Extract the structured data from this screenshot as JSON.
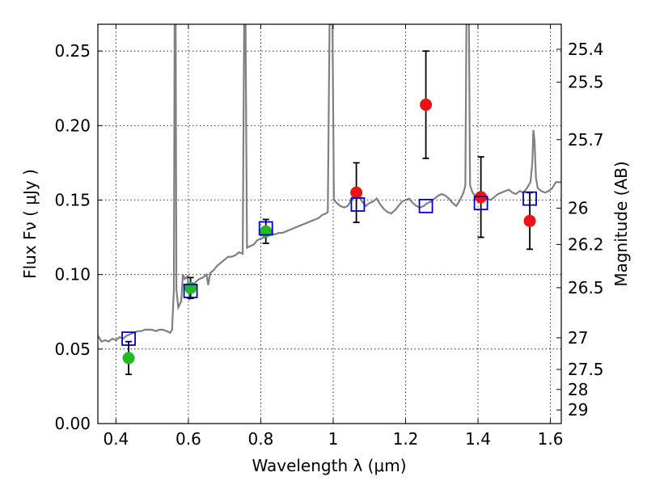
{
  "chart_data": {
    "type": "scatter",
    "xlabel": "Wavelength  λ (μm)",
    "ylabel": "Flux  Fν  ( μJy )",
    "y2label": "Magnitude (AB)",
    "xlim": [
      0.35,
      1.63
    ],
    "ylim": [
      0.0,
      0.268
    ],
    "grid": true,
    "x_ticks": [
      {
        "v": 0.4,
        "label": "0.4"
      },
      {
        "v": 0.6,
        "label": "0.6"
      },
      {
        "v": 0.8,
        "label": "0.8"
      },
      {
        "v": 1.0,
        "label": "1"
      },
      {
        "v": 1.2,
        "label": "1.2"
      },
      {
        "v": 1.4,
        "label": "1.4"
      },
      {
        "v": 1.6,
        "label": "1.6"
      }
    ],
    "y_ticks": [
      {
        "v": 0.0,
        "label": "0.00"
      },
      {
        "v": 0.05,
        "label": "0.05"
      },
      {
        "v": 0.1,
        "label": "0.10"
      },
      {
        "v": 0.15,
        "label": "0.15"
      },
      {
        "v": 0.2,
        "label": "0.20"
      },
      {
        "v": 0.25,
        "label": "0.25"
      }
    ],
    "y2_ticks": [
      {
        "mag": 25.4,
        "label": "25.4"
      },
      {
        "mag": 25.5,
        "label": "25.5"
      },
      {
        "mag": 25.7,
        "label": "25.7"
      },
      {
        "mag": 26.0,
        "label": "26"
      },
      {
        "mag": 26.2,
        "label": "26.2"
      },
      {
        "mag": 26.5,
        "label": "26.5"
      },
      {
        "mag": 27.0,
        "label": "27"
      },
      {
        "mag": 27.5,
        "label": "27.5"
      },
      {
        "mag": 28.0,
        "label": "28"
      },
      {
        "mag": 29.0,
        "label": "29"
      }
    ],
    "colors": {
      "model": "#808080",
      "green": "#22bb22",
      "red": "#ee1111",
      "box": "#0000cc"
    },
    "green_points": [
      {
        "x": 0.435,
        "y": 0.044,
        "err": 0.011
      },
      {
        "x": 0.606,
        "y": 0.091,
        "err": 0.007
      },
      {
        "x": 0.814,
        "y": 0.129,
        "err": 0.008
      }
    ],
    "red_points": [
      {
        "x": 1.064,
        "y": 0.155,
        "err": 0.02
      },
      {
        "x": 1.256,
        "y": 0.214,
        "err": 0.036
      },
      {
        "x": 1.408,
        "y": 0.152,
        "err": 0.027
      },
      {
        "x": 1.543,
        "y": 0.136,
        "err": 0.019
      }
    ],
    "model_boxes": [
      {
        "x": 0.435,
        "y": 0.057
      },
      {
        "x": 0.606,
        "y": 0.089
      },
      {
        "x": 0.814,
        "y": 0.131
      },
      {
        "x": 1.068,
        "y": 0.147
      },
      {
        "x": 1.256,
        "y": 0.146
      },
      {
        "x": 1.408,
        "y": 0.148
      },
      {
        "x": 1.543,
        "y": 0.151
      }
    ],
    "model_spectrum": [
      [
        0.35,
        0.059
      ],
      [
        0.36,
        0.055
      ],
      [
        0.37,
        0.056
      ],
      [
        0.38,
        0.055
      ],
      [
        0.39,
        0.057
      ],
      [
        0.4,
        0.056
      ],
      [
        0.41,
        0.058
      ],
      [
        0.42,
        0.057
      ],
      [
        0.43,
        0.059
      ],
      [
        0.44,
        0.06
      ],
      [
        0.45,
        0.061
      ],
      [
        0.46,
        0.062
      ],
      [
        0.47,
        0.062
      ],
      [
        0.48,
        0.063
      ],
      [
        0.49,
        0.063
      ],
      [
        0.5,
        0.063
      ],
      [
        0.51,
        0.062
      ],
      [
        0.52,
        0.063
      ],
      [
        0.53,
        0.063
      ],
      [
        0.54,
        0.062
      ],
      [
        0.55,
        0.061
      ],
      [
        0.555,
        0.063
      ],
      [
        0.56,
        0.09
      ],
      [
        0.562,
        0.268
      ],
      [
        0.565,
        0.268
      ],
      [
        0.567,
        0.09
      ],
      [
        0.572,
        0.078
      ],
      [
        0.58,
        0.082
      ],
      [
        0.585,
        0.1
      ],
      [
        0.59,
        0.097
      ],
      [
        0.598,
        0.099
      ],
      [
        0.603,
        0.083
      ],
      [
        0.61,
        0.092
      ],
      [
        0.62,
        0.095
      ],
      [
        0.63,
        0.097
      ],
      [
        0.64,
        0.098
      ],
      [
        0.65,
        0.1
      ],
      [
        0.655,
        0.093
      ],
      [
        0.66,
        0.101
      ],
      [
        0.67,
        0.103
      ],
      [
        0.68,
        0.106
      ],
      [
        0.69,
        0.108
      ],
      [
        0.7,
        0.11
      ],
      [
        0.71,
        0.112
      ],
      [
        0.72,
        0.112
      ],
      [
        0.73,
        0.113
      ],
      [
        0.74,
        0.115
      ],
      [
        0.75,
        0.114
      ],
      [
        0.754,
        0.268
      ],
      [
        0.758,
        0.268
      ],
      [
        0.762,
        0.118
      ],
      [
        0.77,
        0.119
      ],
      [
        0.78,
        0.12
      ],
      [
        0.79,
        0.123
      ],
      [
        0.8,
        0.124
      ],
      [
        0.81,
        0.125
      ],
      [
        0.82,
        0.126
      ],
      [
        0.83,
        0.127
      ],
      [
        0.84,
        0.127
      ],
      [
        0.85,
        0.128
      ],
      [
        0.86,
        0.128
      ],
      [
        0.87,
        0.129
      ],
      [
        0.88,
        0.13
      ],
      [
        0.89,
        0.131
      ],
      [
        0.9,
        0.132
      ],
      [
        0.91,
        0.133
      ],
      [
        0.92,
        0.134
      ],
      [
        0.93,
        0.135
      ],
      [
        0.94,
        0.136
      ],
      [
        0.95,
        0.137
      ],
      [
        0.96,
        0.138
      ],
      [
        0.97,
        0.14
      ],
      [
        0.98,
        0.141
      ],
      [
        0.985,
        0.142
      ],
      [
        0.99,
        0.268
      ],
      [
        0.998,
        0.268
      ],
      [
        1.002,
        0.15
      ],
      [
        1.01,
        0.148
      ],
      [
        1.02,
        0.146
      ],
      [
        1.03,
        0.145
      ],
      [
        1.04,
        0.146
      ],
      [
        1.05,
        0.15
      ],
      [
        1.06,
        0.152
      ],
      [
        1.07,
        0.154
      ],
      [
        1.08,
        0.149
      ],
      [
        1.09,
        0.146
      ],
      [
        1.1,
        0.148
      ],
      [
        1.11,
        0.149
      ],
      [
        1.12,
        0.151
      ],
      [
        1.13,
        0.147
      ],
      [
        1.14,
        0.144
      ],
      [
        1.15,
        0.142
      ],
      [
        1.16,
        0.141
      ],
      [
        1.17,
        0.143
      ],
      [
        1.18,
        0.146
      ],
      [
        1.19,
        0.149
      ],
      [
        1.2,
        0.15
      ],
      [
        1.21,
        0.151
      ],
      [
        1.22,
        0.148
      ],
      [
        1.23,
        0.146
      ],
      [
        1.24,
        0.145
      ],
      [
        1.25,
        0.146
      ],
      [
        1.26,
        0.148
      ],
      [
        1.27,
        0.149
      ],
      [
        1.28,
        0.151
      ],
      [
        1.29,
        0.153
      ],
      [
        1.3,
        0.154
      ],
      [
        1.31,
        0.153
      ],
      [
        1.32,
        0.151
      ],
      [
        1.33,
        0.148
      ],
      [
        1.34,
        0.146
      ],
      [
        1.35,
        0.15
      ],
      [
        1.36,
        0.155
      ],
      [
        1.365,
        0.16
      ],
      [
        1.368,
        0.268
      ],
      [
        1.375,
        0.268
      ],
      [
        1.378,
        0.16
      ],
      [
        1.385,
        0.155
      ],
      [
        1.395,
        0.152
      ],
      [
        1.405,
        0.15
      ],
      [
        1.415,
        0.15
      ],
      [
        1.425,
        0.151
      ],
      [
        1.435,
        0.15
      ],
      [
        1.445,
        0.152
      ],
      [
        1.455,
        0.154
      ],
      [
        1.465,
        0.155
      ],
      [
        1.475,
        0.156
      ],
      [
        1.485,
        0.157
      ],
      [
        1.495,
        0.155
      ],
      [
        1.505,
        0.154
      ],
      [
        1.515,
        0.156
      ],
      [
        1.525,
        0.155
      ],
      [
        1.535,
        0.158
      ],
      [
        1.545,
        0.162
      ],
      [
        1.55,
        0.175
      ],
      [
        1.553,
        0.197
      ],
      [
        1.556,
        0.19
      ],
      [
        1.56,
        0.165
      ],
      [
        1.565,
        0.158
      ],
      [
        1.575,
        0.156
      ],
      [
        1.585,
        0.155
      ],
      [
        1.595,
        0.156
      ],
      [
        1.605,
        0.158
      ],
      [
        1.615,
        0.162
      ],
      [
        1.63,
        0.162
      ]
    ]
  }
}
